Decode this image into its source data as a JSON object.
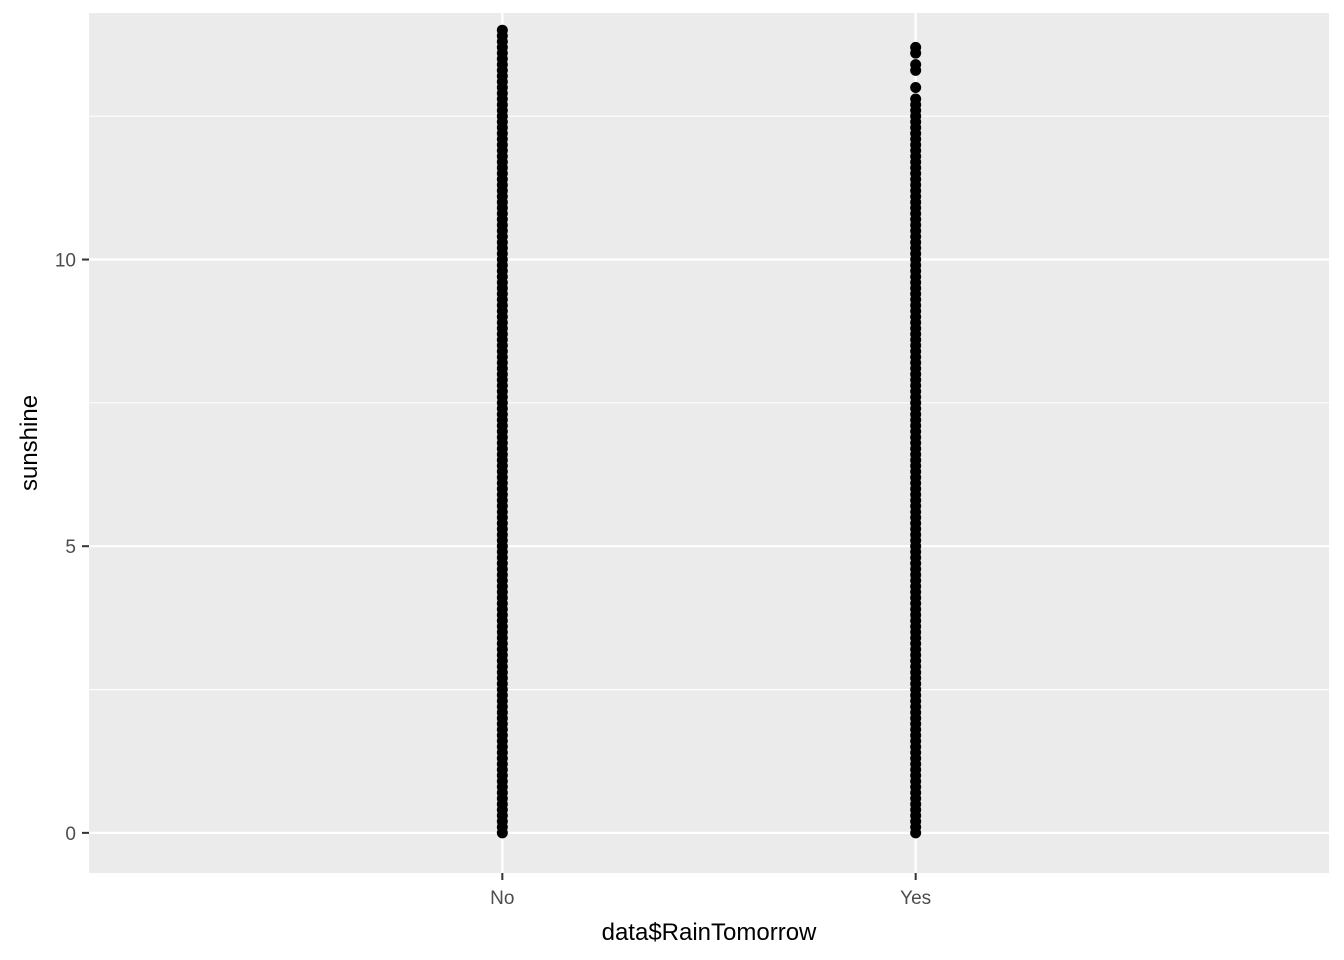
{
  "chart_data": {
    "type": "scatter",
    "title": "",
    "xlabel": "data$RainTomorrow",
    "ylabel": "sunshine",
    "categories": [
      "No",
      "Yes"
    ],
    "y_ticks": [
      0,
      5,
      10
    ],
    "ylim": [
      -0.7,
      14.3
    ],
    "grid": true,
    "legend": "none",
    "series": [
      {
        "category": "No",
        "point_ranges": [
          {
            "from": 0.0,
            "to": 14.0,
            "step": 0.1
          }
        ],
        "extra_points": []
      },
      {
        "category": "Yes",
        "point_ranges": [
          {
            "from": 0.0,
            "to": 12.8,
            "step": 0.1
          }
        ],
        "extra_points": [
          13.0,
          13.3,
          13.4,
          13.6,
          13.7
        ]
      }
    ],
    "colors": {
      "panel": "#EBEBEB",
      "grid": "#FFFFFF",
      "point": "#000000",
      "tick": "#333333"
    }
  }
}
